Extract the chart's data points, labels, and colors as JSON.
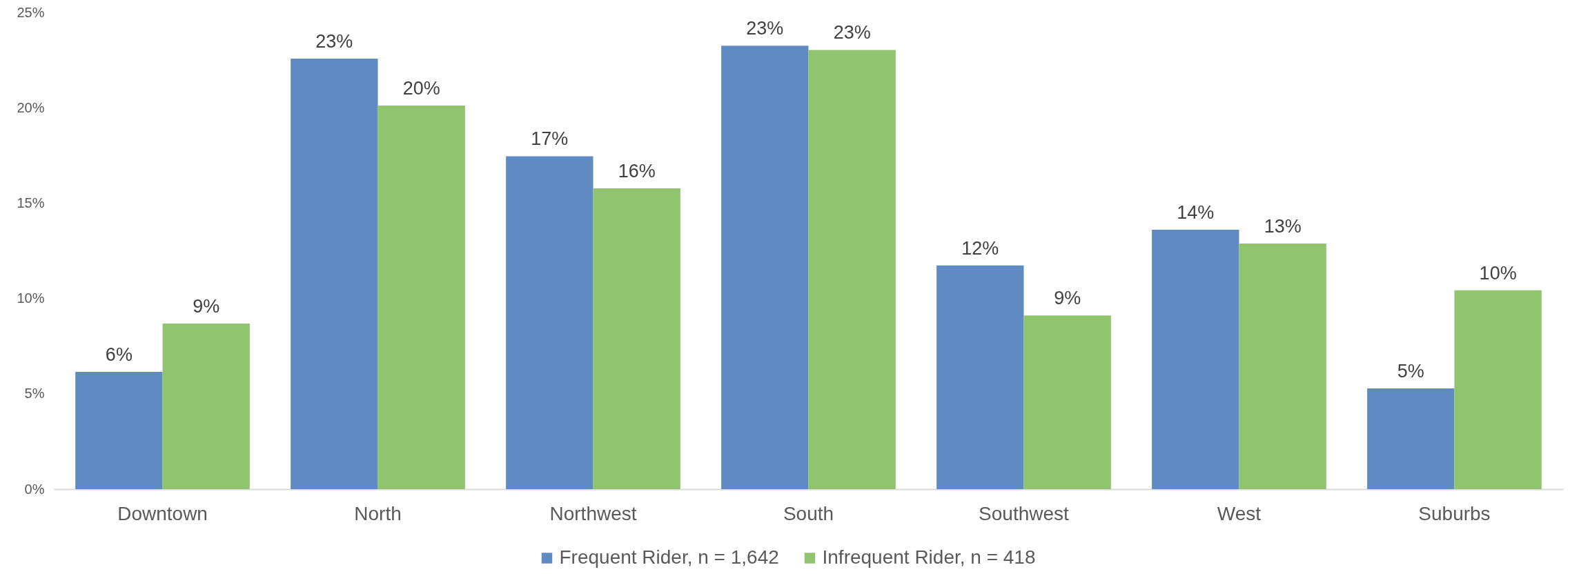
{
  "chart_data": {
    "type": "bar",
    "categories": [
      "Downtown",
      "North",
      "Northwest",
      "South",
      "Southwest",
      "West",
      "Suburbs"
    ],
    "series": [
      {
        "name": "Frequent Rider, n = 1,642",
        "color": "#5f8bc2",
        "values": [
          6.15,
          22.58,
          17.46,
          23.25,
          11.73,
          13.6,
          5.28
        ],
        "value_labels": [
          "6%",
          "23%",
          "17%",
          "23%",
          "12%",
          "14%",
          "5%"
        ]
      },
      {
        "name": "Infrequent Rider, n = 418",
        "color": "#91c46e",
        "values": [
          8.68,
          20.12,
          15.77,
          23.03,
          9.11,
          12.88,
          10.43
        ],
        "value_labels": [
          "9%",
          "20%",
          "16%",
          "23%",
          "9%",
          "13%",
          "10%"
        ]
      }
    ],
    "ylim": [
      0,
      25
    ],
    "yticks": [
      {
        "value": 0,
        "label": "0%"
      },
      {
        "value": 5,
        "label": "5%"
      },
      {
        "value": 10,
        "label": "10%"
      },
      {
        "value": 15,
        "label": "15%"
      },
      {
        "value": 20,
        "label": "20%"
      },
      {
        "value": 25,
        "label": "25%"
      }
    ],
    "grid": false,
    "legend": "bottom"
  }
}
